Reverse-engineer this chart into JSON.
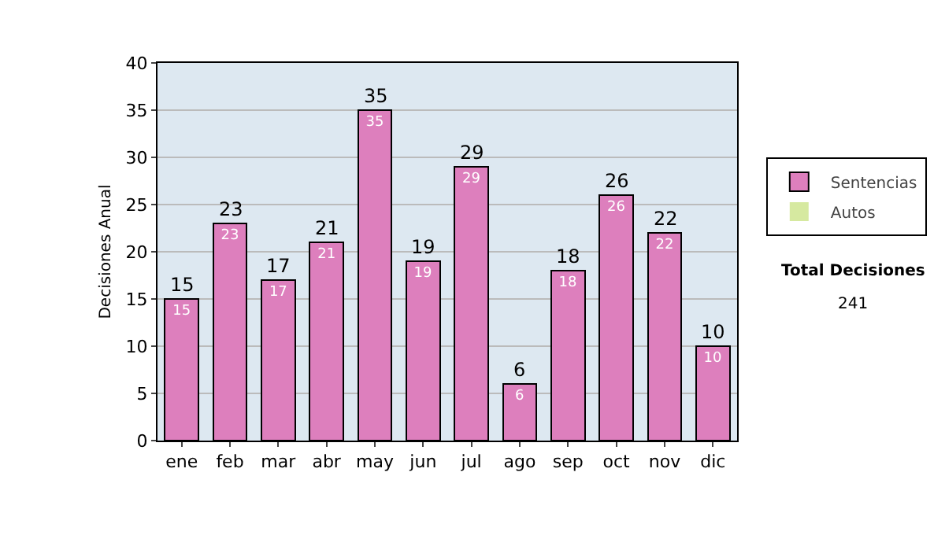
{
  "chart_data": {
    "type": "bar",
    "ylabel": "Decisiones Anual",
    "categories": [
      "ene",
      "feb",
      "mar",
      "abr",
      "may",
      "jun",
      "jul",
      "ago",
      "sep",
      "oct",
      "nov",
      "dic"
    ],
    "series": [
      {
        "name": "Sentencias",
        "color": "#dd7fbd",
        "values": [
          15,
          23,
          17,
          21,
          35,
          19,
          29,
          6,
          18,
          26,
          22,
          10
        ],
        "value_labels": [
          "15",
          "23",
          "17",
          "21",
          "35",
          "19",
          "29",
          "6",
          "18",
          "26",
          "22",
          "10"
        ]
      },
      {
        "name": "Autos",
        "color": "#d6e9a0",
        "values": [
          0,
          0,
          0,
          0,
          0,
          0,
          0,
          0,
          0,
          0,
          0,
          0
        ],
        "value_labels": [
          null,
          null,
          null,
          null,
          null,
          null,
          null,
          null,
          null,
          null,
          null,
          null
        ]
      }
    ],
    "stacked": true,
    "totals": [
      "15",
      "23",
      "17",
      "21",
      "35",
      "19",
      "29",
      "6",
      "18",
      "26",
      "22",
      "10"
    ],
    "ylim": [
      0,
      40
    ],
    "yticks": [
      0,
      5,
      10,
      15,
      20,
      25,
      30,
      35,
      40
    ],
    "grid": "y",
    "legend": "right",
    "annotations": [
      "Total Decisiones",
      "241"
    ]
  }
}
